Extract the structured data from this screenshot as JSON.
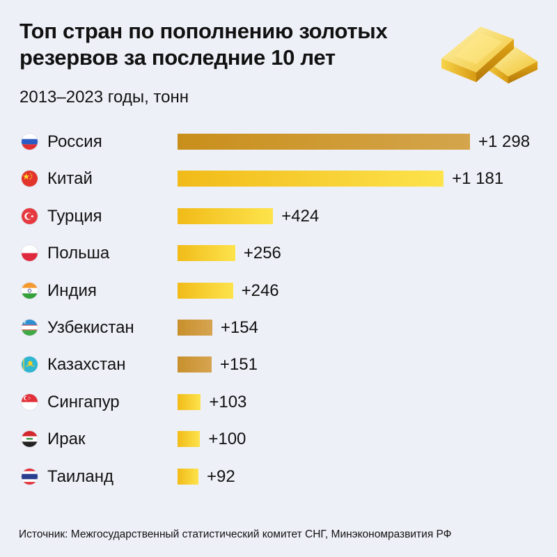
{
  "chart_data": {
    "type": "bar",
    "orientation": "horizontal",
    "title": "Топ стран по пополнению золотых резервов за последние 10 лет",
    "subtitle": "2013–2023 годы, тонн",
    "categories": [
      "Россия",
      "Китай",
      "Турция",
      "Польша",
      "Индия",
      "Узбекистан",
      "Казахстан",
      "Сингапур",
      "Ирак",
      "Таиланд"
    ],
    "values": [
      1298,
      1181,
      424,
      256,
      246,
      154,
      151,
      103,
      100,
      92
    ],
    "labels": [
      "+1 298",
      "+1 181",
      "+424",
      "+256",
      "+246",
      "+154",
      "+151",
      "+103",
      "+100",
      "+92"
    ],
    "bar_styles": [
      "g1",
      "g2",
      "g2",
      "g2",
      "g2",
      "g3",
      "g3",
      "g2",
      "g2",
      "g2"
    ],
    "flags": [
      "russia-flag-icon",
      "china-flag-icon",
      "turkey-flag-icon",
      "poland-flag-icon",
      "india-flag-icon",
      "uzbekistan-flag-icon",
      "kazakhstan-flag-icon",
      "singapore-flag-icon",
      "iraq-flag-icon",
      "thailand-flag-icon"
    ],
    "unit": "тонн",
    "xlim": [
      0,
      1298
    ],
    "source": "Источник: Межгосударственный статистический комитет СНГ, Минэкономразвития РФ"
  },
  "colors": {
    "background": "#eef0f8",
    "gold_dark": "#c98f1b",
    "gold_light": "#fde34c",
    "text": "#111111"
  },
  "decoration": {
    "icon": "gold-bars-icon"
  }
}
